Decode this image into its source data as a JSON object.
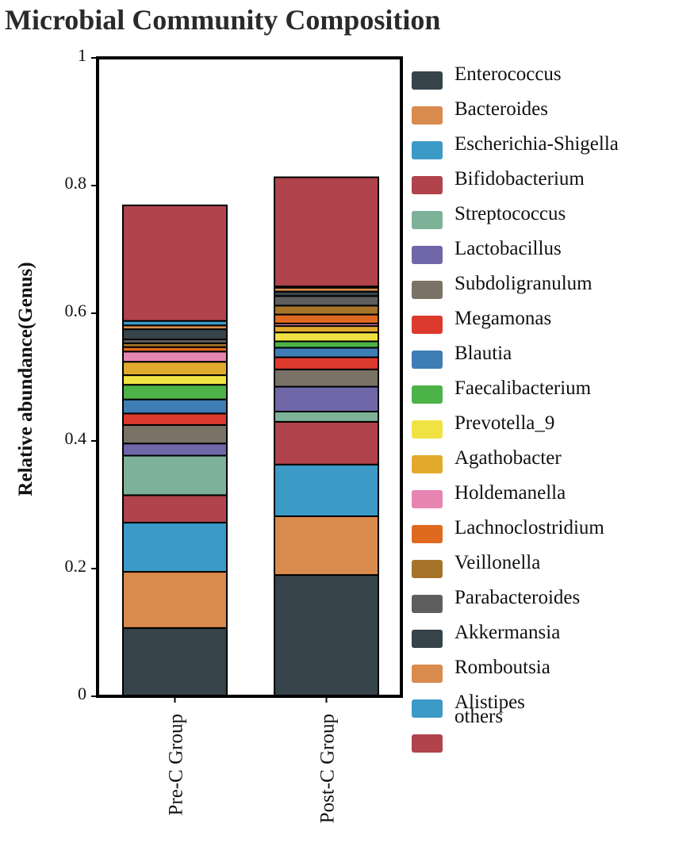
{
  "chart_data": {
    "type": "bar",
    "stacked": true,
    "title": "Microbial Community Composition",
    "xlabel": "",
    "ylabel": "Relative abundance(Genus)",
    "ylim": [
      0,
      1
    ],
    "yticks": [
      "0",
      "0.2",
      "0.4",
      "0.6",
      "0.8",
      "1"
    ],
    "ytick_values": [
      0,
      0.2,
      0.4,
      0.6,
      0.8,
      1
    ],
    "categories": [
      "Pre-C Group",
      "Post-C Group"
    ],
    "legend_position": "right",
    "series": [
      {
        "name": "Enterococcus",
        "color": "#36434b",
        "values": [
          0.107,
          0.19
        ]
      },
      {
        "name": "Bacteroides",
        "color": "#d98a4d",
        "values": [
          0.088,
          0.092
        ]
      },
      {
        "name": "Escherichia-Shigella",
        "color": "#3c9ac7",
        "values": [
          0.077,
          0.081
        ]
      },
      {
        "name": "Bifidobacterium",
        "color": "#b0434b",
        "values": [
          0.043,
          0.067
        ]
      },
      {
        "name": "Streptococcus",
        "color": "#7db298",
        "values": [
          0.062,
          0.016
        ]
      },
      {
        "name": "Lactobacillus",
        "color": "#6f67a8",
        "values": [
          0.019,
          0.039
        ]
      },
      {
        "name": "Subdoligranulum",
        "color": "#7a7266",
        "values": [
          0.029,
          0.027
        ]
      },
      {
        "name": "Megamonas",
        "color": "#dc3a2d",
        "values": [
          0.018,
          0.019
        ]
      },
      {
        "name": "Blautia",
        "color": "#3f7db5",
        "values": [
          0.022,
          0.015
        ]
      },
      {
        "name": "Faecalibacterium",
        "color": "#4cb349",
        "values": [
          0.023,
          0.01
        ]
      },
      {
        "name": "Prevotella_9",
        "color": "#f1e244",
        "values": [
          0.015,
          0.014
        ]
      },
      {
        "name": "Agathobacter",
        "color": "#e2aa2d",
        "values": [
          0.021,
          0.01
        ]
      },
      {
        "name": "Holdemanella",
        "color": "#e785b2",
        "values": [
          0.016,
          0.004
        ]
      },
      {
        "name": "Lachnoclostridium",
        "color": "#e06920",
        "values": [
          0.007,
          0.014
        ]
      },
      {
        "name": "Veillonella",
        "color": "#a67429",
        "values": [
          0.006,
          0.014
        ]
      },
      {
        "name": "Parabacteroides",
        "color": "#5e5e5e",
        "values": [
          0.006,
          0.015
        ]
      },
      {
        "name": "Akkermansia",
        "color": "#36434b",
        "values": [
          0.016,
          0.007
        ]
      },
      {
        "name": "Romboutsia",
        "color": "#d98a4d",
        "values": [
          0.006,
          0.006
        ]
      },
      {
        "name": "Alistipes",
        "color": "#3c9ac7",
        "values": [
          0.007,
          0.002
        ]
      },
      {
        "name": "others",
        "color": "#b0434b",
        "values": [
          0.181,
          0.171
        ]
      }
    ]
  }
}
